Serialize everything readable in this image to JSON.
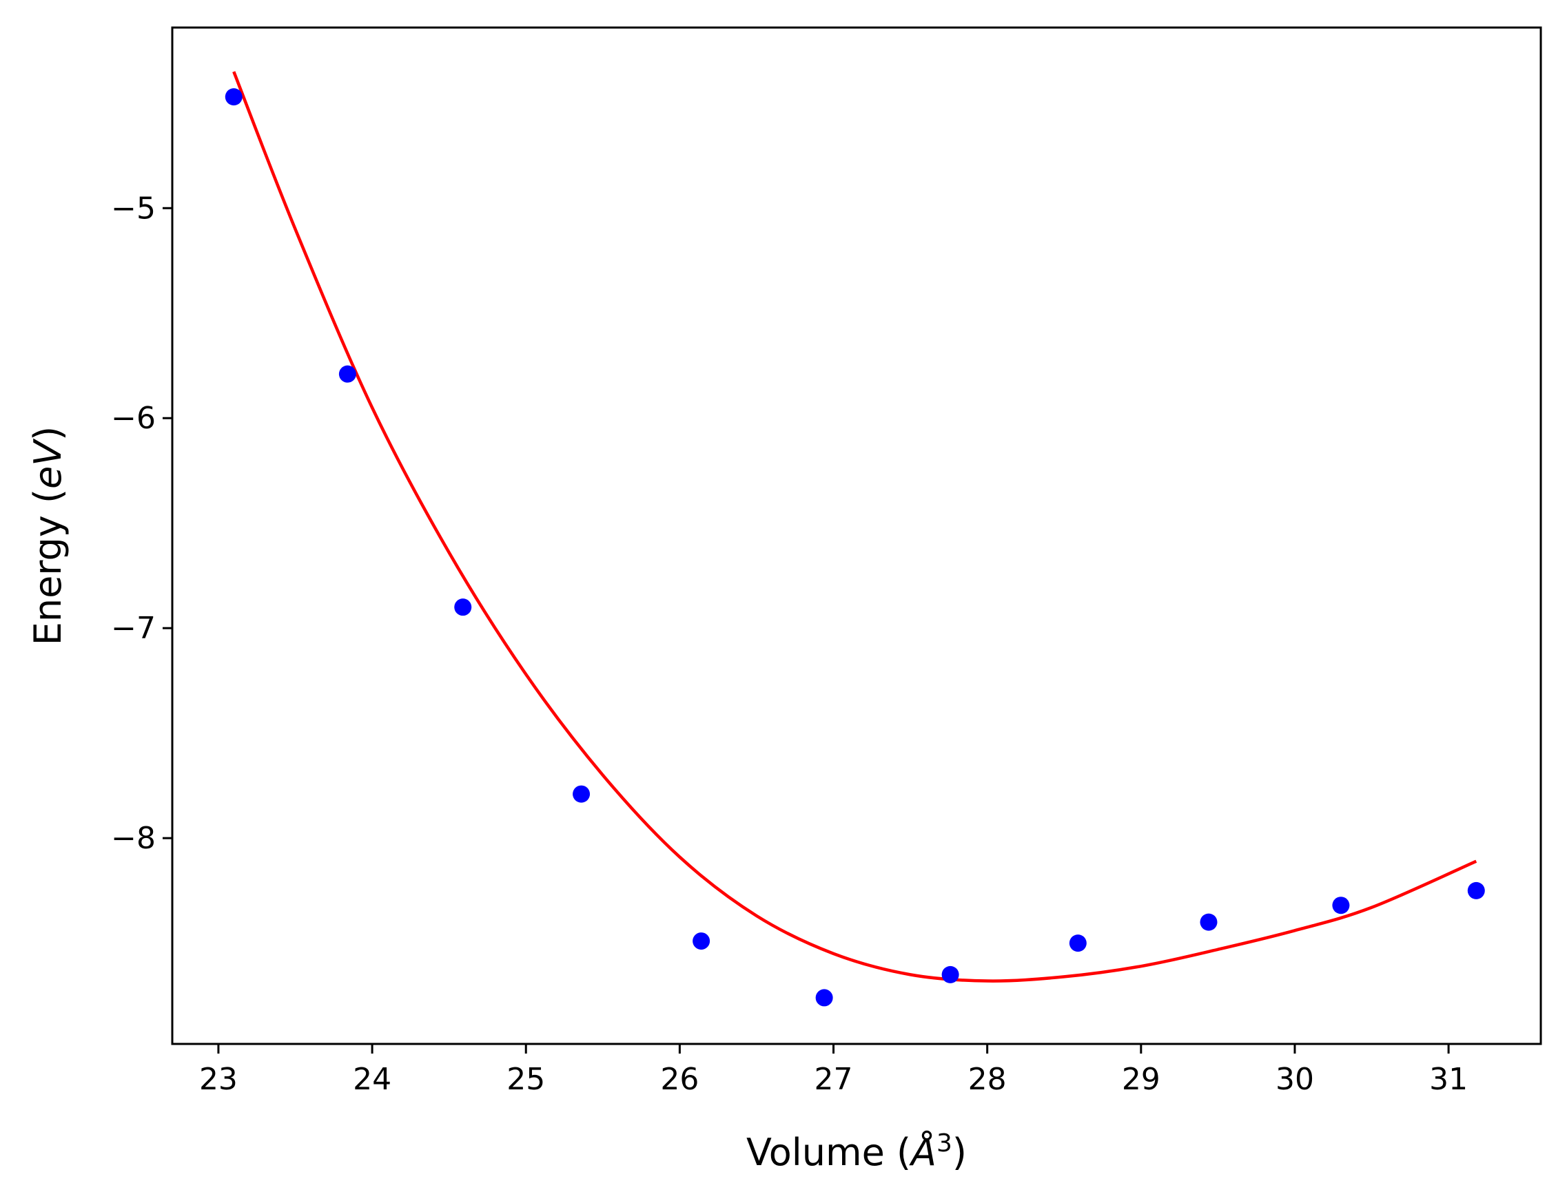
{
  "chart_data": {
    "type": "scatter",
    "title": "",
    "xlabel": {
      "prefix": "Volume (",
      "unit": "Å",
      "power": "3",
      "suffix": ")"
    },
    "ylabel": {
      "prefix": "Energy (",
      "unit": "eV",
      "suffix": ")"
    },
    "xlim": [
      22.7,
      31.6
    ],
    "ylim": [
      -8.98,
      -4.14
    ],
    "grid": false,
    "x_ticks": [
      23,
      24,
      25,
      26,
      27,
      28,
      29,
      30,
      31
    ],
    "y_ticks": [
      -8,
      -7,
      -6,
      -5
    ],
    "x_tick_labels": [
      "23",
      "24",
      "25",
      "26",
      "27",
      "28",
      "29",
      "30",
      "31"
    ],
    "y_tick_labels": [
      "−8",
      "−7",
      "−6",
      "−5"
    ],
    "series": [
      {
        "kind": "points",
        "color": "#0000ff",
        "x": [
          23.1,
          23.84,
          24.59,
          25.36,
          26.14,
          26.94,
          27.76,
          28.59,
          29.44,
          30.3,
          31.18
        ],
        "y": [
          -4.47,
          -5.79,
          -6.9,
          -7.79,
          -8.49,
          -8.76,
          -8.65,
          -8.5,
          -8.4,
          -8.32,
          -8.25
        ]
      },
      {
        "kind": "fit",
        "color": "#ff0000",
        "x": [
          23.1,
          23.5,
          24.0,
          24.5,
          25.0,
          25.5,
          26.0,
          26.5,
          27.0,
          27.5,
          28.0,
          28.5,
          29.0,
          29.5,
          30.0,
          30.5,
          31.18
        ],
        "y": [
          -4.35,
          -5.1,
          -5.95,
          -6.64,
          -7.22,
          -7.7,
          -8.09,
          -8.37,
          -8.55,
          -8.65,
          -8.68,
          -8.66,
          -8.61,
          -8.53,
          -8.44,
          -8.33,
          -8.11
        ]
      }
    ]
  }
}
